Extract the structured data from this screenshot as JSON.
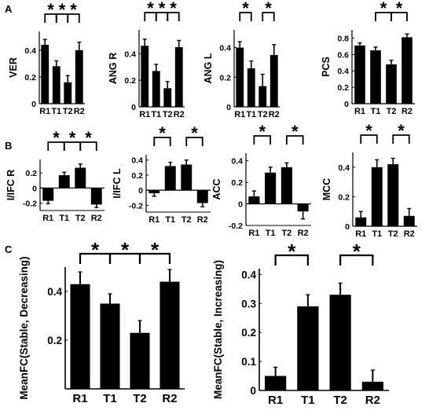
{
  "panel_labels": [
    "A",
    "B",
    "C"
  ],
  "chart_data": [
    {
      "type": "bar",
      "row": "A",
      "categories": [
        "R1",
        "T1",
        "T2",
        "R2"
      ],
      "values": [
        0.44,
        0.28,
        0.16,
        0.4
      ],
      "errors": [
        0.04,
        0.04,
        0.05,
        0.06
      ],
      "ylabel": "VER",
      "ylim": [
        0,
        0.54
      ],
      "yticks": [
        0,
        0.2,
        0.4
      ],
      "tick_labels": [
        "0",
        "0.2",
        "0.4"
      ],
      "stars": [
        {
          "from": 0,
          "to": 1,
          "label": "*"
        },
        {
          "from": 1,
          "to": 2,
          "label": "*"
        },
        {
          "from": 2,
          "to": 3,
          "label": "*"
        }
      ]
    },
    {
      "type": "bar",
      "row": "A",
      "categories": [
        "R1",
        "T1",
        "T2",
        "R2"
      ],
      "values": [
        0.46,
        0.27,
        0.14,
        0.45
      ],
      "errors": [
        0.05,
        0.05,
        0.05,
        0.05
      ],
      "ylabel": "ANG R",
      "ylim": [
        0,
        0.58
      ],
      "yticks": [
        0,
        0.2,
        0.4
      ],
      "tick_labels": [
        "0",
        "0.2",
        "0.4"
      ],
      "stars": [
        {
          "from": 0,
          "to": 1,
          "label": "*"
        },
        {
          "from": 1,
          "to": 2,
          "label": "*"
        },
        {
          "from": 2,
          "to": 3,
          "label": "*"
        }
      ]
    },
    {
      "type": "bar",
      "row": "A",
      "categories": [
        "R1",
        "T1",
        "T2",
        "R2"
      ],
      "values": [
        0.4,
        0.26,
        0.14,
        0.35
      ],
      "errors": [
        0.04,
        0.05,
        0.08,
        0.07
      ],
      "ylabel": "ANG L",
      "ylim": [
        0,
        0.52
      ],
      "yticks": [
        0,
        0.2,
        0.4
      ],
      "tick_labels": [
        "0",
        "0.2",
        "0.4"
      ],
      "stars": [
        {
          "from": 0,
          "to": 1,
          "label": "*"
        },
        {
          "from": 2,
          "to": 3,
          "label": "*"
        }
      ]
    },
    {
      "type": "bar",
      "row": "A",
      "categories": [
        "R1",
        "T1",
        "T2",
        "R2"
      ],
      "values": [
        0.71,
        0.65,
        0.48,
        0.81
      ],
      "errors": [
        0.03,
        0.04,
        0.05,
        0.04
      ],
      "ylabel": "PCS",
      "ylim": [
        0,
        0.9
      ],
      "yticks": [
        0,
        0.2,
        0.4,
        0.6,
        0.8
      ],
      "tick_labels": [
        "0",
        "0.2",
        "0.4",
        "0.6",
        "0.8"
      ],
      "stars": [
        {
          "from": 1,
          "to": 2,
          "label": "*"
        },
        {
          "from": 2,
          "to": 3,
          "label": "*"
        }
      ]
    },
    {
      "type": "bar",
      "row": "B",
      "categories": [
        "R1",
        "T1",
        "T2",
        "R2"
      ],
      "values": [
        -0.17,
        0.17,
        0.27,
        -0.22
      ],
      "errors": [
        0.04,
        0.04,
        0.05,
        0.04
      ],
      "ylabel": "I/IFC R",
      "ylim": [
        -0.3,
        0.38
      ],
      "yticks": [
        -0.2,
        0,
        0.2
      ],
      "tick_labels": [
        "-0.2",
        "0",
        "0.2"
      ],
      "stars": [
        {
          "from": 0,
          "to": 1,
          "label": "*"
        },
        {
          "from": 1,
          "to": 2,
          "label": "*"
        },
        {
          "from": 2,
          "to": 3,
          "label": "*"
        }
      ]
    },
    {
      "type": "bar",
      "row": "B",
      "categories": [
        "R1",
        "T1",
        "T2",
        "R2"
      ],
      "values": [
        -0.04,
        0.32,
        0.34,
        -0.17
      ],
      "errors": [
        0.04,
        0.05,
        0.06,
        0.05
      ],
      "ylabel": "I/IFC L",
      "ylim": [
        -0.29,
        0.47
      ],
      "yticks": [
        -0.2,
        0,
        0.2,
        0.4
      ],
      "tick_labels": [
        "-0.2",
        "0",
        "0.2",
        "0.4"
      ],
      "stars": [
        {
          "from": 0,
          "to": 1,
          "label": "*"
        },
        {
          "from": 2,
          "to": 3,
          "label": "*"
        }
      ]
    },
    {
      "type": "bar",
      "row": "B",
      "categories": [
        "R1",
        "T1",
        "T2",
        "R2"
      ],
      "values": [
        0.07,
        0.29,
        0.34,
        -0.07
      ],
      "errors": [
        0.05,
        0.05,
        0.04,
        0.07
      ],
      "ylabel": "ACC",
      "ylim": [
        -0.2,
        0.47
      ],
      "yticks": [
        -0.2,
        0,
        0.2,
        0.4
      ],
      "tick_labels": [
        "-0.2",
        "0",
        "0.2",
        "0.4"
      ],
      "stars": [
        {
          "from": 0,
          "to": 1,
          "label": "*"
        },
        {
          "from": 2,
          "to": 3,
          "label": "*"
        }
      ]
    },
    {
      "type": "bar",
      "row": "B",
      "categories": [
        "R1",
        "T1",
        "T2",
        "R2"
      ],
      "values": [
        0.06,
        0.4,
        0.42,
        0.07
      ],
      "errors": [
        0.04,
        0.05,
        0.04,
        0.05
      ],
      "ylabel": "MCC",
      "ylim": [
        0,
        0.5
      ],
      "yticks": [
        0,
        0.2,
        0.4
      ],
      "tick_labels": [
        "0",
        "0.2",
        "0.4"
      ],
      "stars": [
        {
          "from": 0,
          "to": 1,
          "label": "*"
        },
        {
          "from": 2,
          "to": 3,
          "label": "*"
        }
      ]
    },
    {
      "type": "bar",
      "row": "C",
      "categories": [
        "R1",
        "T1",
        "T2",
        "R2"
      ],
      "values": [
        0.43,
        0.35,
        0.23,
        0.44
      ],
      "errors": [
        0.05,
        0.04,
        0.05,
        0.05
      ],
      "ylabel": "MeanFC(Stable, Decreasing)",
      "ylim": [
        0,
        0.5
      ],
      "yticks": [
        0.2,
        0.4
      ],
      "tick_labels": [
        "0.2",
        "0.4"
      ],
      "stars": [
        {
          "from": 0,
          "to": 1,
          "label": "*"
        },
        {
          "from": 1,
          "to": 2,
          "label": "*"
        },
        {
          "from": 2,
          "to": 3,
          "label": "*"
        }
      ]
    },
    {
      "type": "bar",
      "row": "C",
      "categories": [
        "R1",
        "T1",
        "T2",
        "R2"
      ],
      "values": [
        0.05,
        0.29,
        0.33,
        0.03
      ],
      "errors": [
        0.03,
        0.04,
        0.04,
        0.04
      ],
      "ylabel": "MeanFC(Stable, Increasing)",
      "ylim": [
        0,
        0.42
      ],
      "yticks": [
        0,
        0.1,
        0.2,
        0.3,
        0.4
      ],
      "tick_labels": [
        "0",
        "0.1",
        "0.2",
        "0.3",
        "0.4"
      ],
      "stars": [
        {
          "from": 0,
          "to": 1,
          "label": "*"
        },
        {
          "from": 2,
          "to": 3,
          "label": "*"
        }
      ]
    }
  ]
}
